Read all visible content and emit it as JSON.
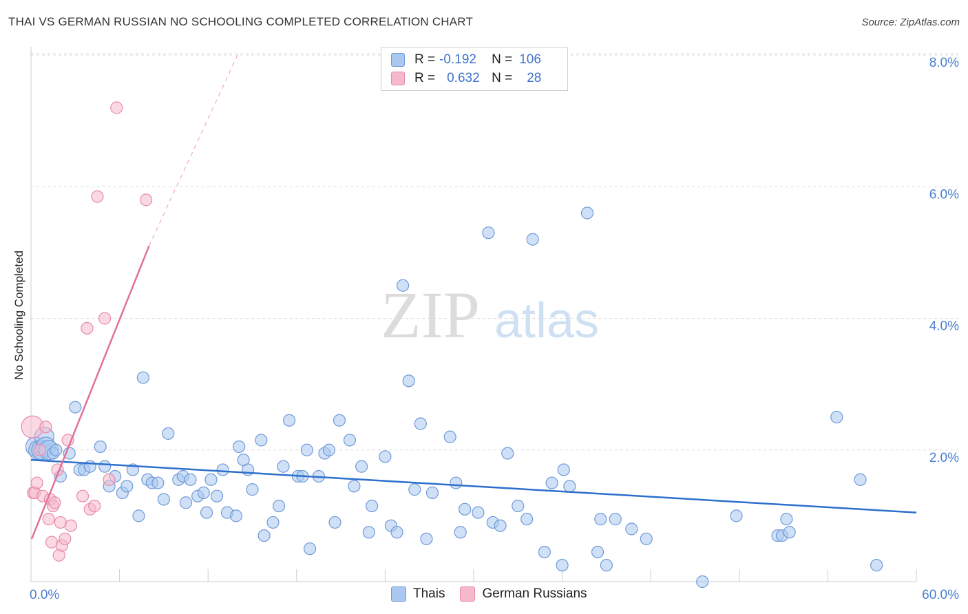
{
  "title": "THAI VS GERMAN RUSSIAN NO SCHOOLING COMPLETED CORRELATION CHART",
  "source": "Source: ZipAtlas.com",
  "watermark": {
    "zip": "ZIP",
    "atlas": "atlas"
  },
  "colors": {
    "blue_fill": "#aac8f0",
    "blue_stroke": "#6f9ad8",
    "blue_line": "#2d6fcd",
    "pink_fill": "#f6b9cc",
    "pink_stroke": "#e98aa8",
    "pink_line": "#e0709a",
    "grid": "#dcdcdc",
    "axis_text": "#4a7fd0"
  },
  "legend": {
    "rows": [
      {
        "r_label": "R =",
        "r_value": "-0.192",
        "n_label": "N =",
        "n_value": "106",
        "color": "#aac8f0"
      },
      {
        "r_label": "R =",
        "r_value": "0.632",
        "n_label": "N =",
        "n_value": "28",
        "color": "#f6b9cc"
      }
    ]
  },
  "bottom_legend": [
    {
      "label": "Thais",
      "color": "#aac8f0"
    },
    {
      "label": "German Russians",
      "color": "#f6b9cc"
    }
  ],
  "chart_data": {
    "type": "scatter",
    "title": "THAI VS GERMAN RUSSIAN NO SCHOOLING COMPLETED CORRELATION CHART",
    "xlabel": "",
    "ylabel": "No Schooling Completed",
    "xlim": [
      0,
      60
    ],
    "ylim": [
      0,
      8.3
    ],
    "x_tick_labels": [
      "0.0%",
      "60.0%"
    ],
    "y_ticks": [
      2,
      4,
      6,
      8
    ],
    "y_tick_labels": [
      "2.0%",
      "4.0%",
      "6.0%",
      "8.0%"
    ],
    "grid": true,
    "series": [
      {
        "name": "Thais",
        "trend": {
          "x": [
            0,
            60
          ],
          "y": [
            1.85,
            1.05
          ]
        },
        "points": [
          [
            0.3,
            2.05
          ],
          [
            0.5,
            2.0
          ],
          [
            0.7,
            2.0
          ],
          [
            0.9,
            2.2
          ],
          [
            1.0,
            2.05
          ],
          [
            1.2,
            2.0
          ],
          [
            1.5,
            1.95
          ],
          [
            1.7,
            2.0
          ],
          [
            2.0,
            1.6
          ],
          [
            2.6,
            1.95
          ],
          [
            3.0,
            2.65
          ],
          [
            3.3,
            1.7
          ],
          [
            3.6,
            1.7
          ],
          [
            4.0,
            1.75
          ],
          [
            4.7,
            2.05
          ],
          [
            5.0,
            1.75
          ],
          [
            5.3,
            1.45
          ],
          [
            5.7,
            1.6
          ],
          [
            6.2,
            1.35
          ],
          [
            6.5,
            1.45
          ],
          [
            6.9,
            1.7
          ],
          [
            7.3,
            1.0
          ],
          [
            7.6,
            3.1
          ],
          [
            7.9,
            1.55
          ],
          [
            8.2,
            1.5
          ],
          [
            8.6,
            1.5
          ],
          [
            9.0,
            1.25
          ],
          [
            9.3,
            2.25
          ],
          [
            10.0,
            1.55
          ],
          [
            10.3,
            1.6
          ],
          [
            10.5,
            1.2
          ],
          [
            10.8,
            1.55
          ],
          [
            11.3,
            1.3
          ],
          [
            11.7,
            1.35
          ],
          [
            11.9,
            1.05
          ],
          [
            12.2,
            1.55
          ],
          [
            12.6,
            1.3
          ],
          [
            13.0,
            1.7
          ],
          [
            13.3,
            1.05
          ],
          [
            13.9,
            1.0
          ],
          [
            14.1,
            2.05
          ],
          [
            14.4,
            1.85
          ],
          [
            14.7,
            1.7
          ],
          [
            15.0,
            1.4
          ],
          [
            15.6,
            2.15
          ],
          [
            15.8,
            0.7
          ],
          [
            16.4,
            0.9
          ],
          [
            16.8,
            1.15
          ],
          [
            17.1,
            1.75
          ],
          [
            17.5,
            2.45
          ],
          [
            18.1,
            1.6
          ],
          [
            18.4,
            1.6
          ],
          [
            18.7,
            2.0
          ],
          [
            18.9,
            0.5
          ],
          [
            19.5,
            1.6
          ],
          [
            19.9,
            1.95
          ],
          [
            20.2,
            2.0
          ],
          [
            20.6,
            0.9
          ],
          [
            20.9,
            2.45
          ],
          [
            21.6,
            2.15
          ],
          [
            21.9,
            1.45
          ],
          [
            22.4,
            1.75
          ],
          [
            22.9,
            0.75
          ],
          [
            23.1,
            1.15
          ],
          [
            24.0,
            1.9
          ],
          [
            24.4,
            0.85
          ],
          [
            24.8,
            0.75
          ],
          [
            25.2,
            4.5
          ],
          [
            25.6,
            3.05
          ],
          [
            26.0,
            1.4
          ],
          [
            26.4,
            2.4
          ],
          [
            26.8,
            0.65
          ],
          [
            27.2,
            1.35
          ],
          [
            28.4,
            2.2
          ],
          [
            28.8,
            1.5
          ],
          [
            29.1,
            0.75
          ],
          [
            29.4,
            1.1
          ],
          [
            30.3,
            1.05
          ],
          [
            31.0,
            5.3
          ],
          [
            31.3,
            0.9
          ],
          [
            31.8,
            0.85
          ],
          [
            32.3,
            1.95
          ],
          [
            33.0,
            1.15
          ],
          [
            33.6,
            0.95
          ],
          [
            34.0,
            5.2
          ],
          [
            34.8,
            0.45
          ],
          [
            35.3,
            1.5
          ],
          [
            36.0,
            0.25
          ],
          [
            36.1,
            1.7
          ],
          [
            36.5,
            1.45
          ],
          [
            37.7,
            5.6
          ],
          [
            38.4,
            0.45
          ],
          [
            38.6,
            0.95
          ],
          [
            39.0,
            0.25
          ],
          [
            39.6,
            0.95
          ],
          [
            40.7,
            0.8
          ],
          [
            41.7,
            0.65
          ],
          [
            45.5,
            0.0
          ],
          [
            47.8,
            1.0
          ],
          [
            50.6,
            0.7
          ],
          [
            50.9,
            0.7
          ],
          [
            51.2,
            0.95
          ],
          [
            51.4,
            0.75
          ],
          [
            54.6,
            2.5
          ],
          [
            56.2,
            1.55
          ],
          [
            57.3,
            0.25
          ]
        ]
      },
      {
        "name": "German Russians",
        "trend": {
          "x": [
            0.05,
            8.0
          ],
          "y": [
            0.65,
            5.1
          ]
        },
        "trend_extension": {
          "x": [
            8.0,
            14.0
          ],
          "y": [
            5.1,
            8.0
          ]
        },
        "points": [
          [
            0.1,
            2.35
          ],
          [
            0.15,
            1.35
          ],
          [
            0.25,
            1.35
          ],
          [
            0.4,
            1.5
          ],
          [
            0.6,
            2.0
          ],
          [
            0.8,
            1.3
          ],
          [
            1.0,
            2.35
          ],
          [
            1.2,
            0.95
          ],
          [
            1.3,
            1.25
          ],
          [
            1.4,
            0.6
          ],
          [
            1.5,
            1.15
          ],
          [
            1.6,
            1.2
          ],
          [
            1.8,
            1.7
          ],
          [
            1.9,
            0.4
          ],
          [
            2.0,
            0.9
          ],
          [
            2.1,
            0.55
          ],
          [
            2.3,
            0.65
          ],
          [
            2.5,
            2.15
          ],
          [
            2.7,
            0.85
          ],
          [
            3.5,
            1.3
          ],
          [
            3.8,
            3.85
          ],
          [
            4.0,
            1.1
          ],
          [
            4.3,
            1.15
          ],
          [
            4.5,
            5.85
          ],
          [
            5.0,
            4.0
          ],
          [
            5.3,
            1.55
          ],
          [
            5.8,
            7.2
          ],
          [
            7.8,
            5.8
          ]
        ]
      }
    ]
  }
}
